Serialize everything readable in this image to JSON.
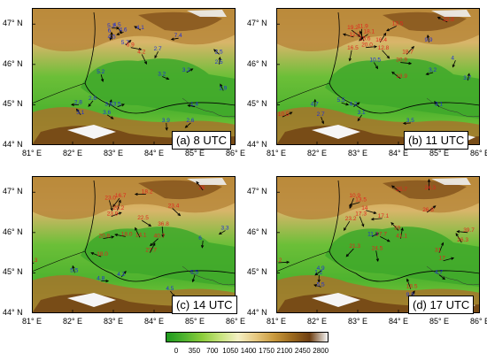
{
  "panels": [
    {
      "label": "(a)  8 UTC",
      "y_ticks": [
        "47° N",
        "46° N",
        "45° N",
        "44° N"
      ],
      "x_ticks": [
        "81° E",
        "82° E",
        "83° E",
        "84° E",
        "85° E",
        "86° E"
      ],
      "stations": [
        {
          "v": "5.2",
          "c": "blue",
          "lon": 82.96,
          "lat": 46.9
        },
        {
          "v": "4.5",
          "c": "blue",
          "lon": 83.1,
          "lat": 46.92
        },
        {
          "v": "6",
          "c": "blue",
          "lon": 82.97,
          "lat": 46.78
        },
        {
          "v": "4.6",
          "c": "blue",
          "lon": 83.25,
          "lat": 46.8
        },
        {
          "v": "4.1",
          "c": "blue",
          "lon": 83.67,
          "lat": 46.85
        },
        {
          "v": "4.5",
          "c": "blue",
          "lon": 82.97,
          "lat": 46.62
        },
        {
          "v": "5.7",
          "c": "blue",
          "lon": 83.3,
          "lat": 46.48
        },
        {
          "v": "6.9",
          "c": "red",
          "lon": 83.43,
          "lat": 46.42
        },
        {
          "v": "4.2",
          "c": "red",
          "lon": 83.7,
          "lat": 46.25
        },
        {
          "v": "2.7",
          "c": "blue",
          "lon": 84.1,
          "lat": 46.32
        },
        {
          "v": "7.4",
          "c": "blue",
          "lon": 84.6,
          "lat": 46.65
        },
        {
          "v": "2.5",
          "c": "blue",
          "lon": 85.6,
          "lat": 46.25
        },
        {
          "v": "2.5",
          "c": "blue",
          "lon": 85.6,
          "lat": 46.0
        },
        {
          "v": "3.2",
          "c": "blue",
          "lon": 84.8,
          "lat": 45.8
        },
        {
          "v": "3.2",
          "c": "blue",
          "lon": 84.2,
          "lat": 45.7
        },
        {
          "v": "5.2",
          "c": "blue",
          "lon": 82.7,
          "lat": 45.75
        },
        {
          "v": "2.6",
          "c": "blue",
          "lon": 82.5,
          "lat": 45.1
        },
        {
          "v": "2.8",
          "c": "blue",
          "lon": 82.15,
          "lat": 45.0
        },
        {
          "v": "3.1",
          "c": "blue",
          "lon": 82.2,
          "lat": 44.75
        },
        {
          "v": "3.6",
          "c": "blue",
          "lon": 82.9,
          "lat": 44.95
        },
        {
          "v": "3.5",
          "c": "blue",
          "lon": 83.1,
          "lat": 44.95
        },
        {
          "v": "3.6",
          "c": "blue",
          "lon": 82.85,
          "lat": 44.75
        },
        {
          "v": "3.9",
          "c": "blue",
          "lon": 84.3,
          "lat": 44.55
        },
        {
          "v": "2.6",
          "c": "blue",
          "lon": 84.9,
          "lat": 44.55
        },
        {
          "v": "1.4",
          "c": "blue",
          "lon": 85.0,
          "lat": 44.95
        },
        {
          "v": "1.9",
          "c": "blue",
          "lon": 85.7,
          "lat": 45.35
        }
      ]
    },
    {
      "label": "(b) 11 UTC",
      "y_ticks": [
        "47° N",
        "46° N",
        "45° N",
        "44° N"
      ],
      "x_ticks": [
        "81° E",
        "82° E",
        "83° E",
        "84° E",
        "85° E",
        "86° E"
      ],
      "stations": [
        {
          "v": "19.2",
          "c": "red",
          "lon": 82.85,
          "lat": 46.85
        },
        {
          "v": "11.9",
          "c": "red",
          "lon": 83.1,
          "lat": 46.88
        },
        {
          "v": "18.1",
          "c": "red",
          "lon": 83.25,
          "lat": 46.75
        },
        {
          "v": "12.3",
          "c": "red",
          "lon": 82.9,
          "lat": 46.68
        },
        {
          "v": "15.6",
          "c": "red",
          "lon": 83.15,
          "lat": 46.58
        },
        {
          "v": "16.4",
          "c": "red",
          "lon": 83.55,
          "lat": 46.55
        },
        {
          "v": "20.0",
          "c": "red",
          "lon": 83.2,
          "lat": 46.42
        },
        {
          "v": "12.8",
          "c": "red",
          "lon": 83.6,
          "lat": 46.35
        },
        {
          "v": "16.5",
          "c": "red",
          "lon": 82.85,
          "lat": 46.35
        },
        {
          "v": "13.5",
          "c": "red",
          "lon": 83.95,
          "lat": 46.95
        },
        {
          "v": "22.8",
          "c": "red",
          "lon": 85.2,
          "lat": 47.05
        },
        {
          "v": "9.9",
          "c": "blue",
          "lon": 84.75,
          "lat": 46.55
        },
        {
          "v": "18.7",
          "c": "red",
          "lon": 84.2,
          "lat": 46.25
        },
        {
          "v": "30.9",
          "c": "red",
          "lon": 84.05,
          "lat": 46.05
        },
        {
          "v": "10.5",
          "c": "blue",
          "lon": 83.4,
          "lat": 46.05
        },
        {
          "v": "4",
          "c": "blue",
          "lon": 85.4,
          "lat": 46.1
        },
        {
          "v": "3.2",
          "c": "blue",
          "lon": 84.85,
          "lat": 45.8
        },
        {
          "v": "18.9",
          "c": "red",
          "lon": 84.05,
          "lat": 45.65
        },
        {
          "v": "4.7",
          "c": "blue",
          "lon": 81.95,
          "lat": 44.95
        },
        {
          "v": "4.2",
          "c": "blue",
          "lon": 82.9,
          "lat": 44.95
        },
        {
          "v": "5.5",
          "c": "blue",
          "lon": 82.6,
          "lat": 45.05
        },
        {
          "v": "2.7",
          "c": "blue",
          "lon": 82.1,
          "lat": 44.7
        },
        {
          "v": "3.1",
          "c": "blue",
          "lon": 83.1,
          "lat": 44.75
        },
        {
          "v": "3.5",
          "c": "blue",
          "lon": 84.3,
          "lat": 44.55
        },
        {
          "v": "3.1",
          "c": "blue",
          "lon": 85.0,
          "lat": 44.95
        },
        {
          "v": "3.7",
          "c": "blue",
          "lon": 85.7,
          "lat": 45.6
        },
        {
          "v": "10.5",
          "c": "red",
          "lon": 81.15,
          "lat": 44.7
        }
      ]
    },
    {
      "label": "(c) 14 UTC",
      "y_ticks": [
        "47° N",
        "46° N",
        "45° N",
        "44° N"
      ],
      "x_ticks": [
        "81° E",
        "82° E",
        "83° E",
        "84° E",
        "85° E",
        "86° E"
      ],
      "stations": [
        {
          "v": "23.0",
          "c": "red",
          "lon": 82.9,
          "lat": 46.8
        },
        {
          "v": "16.7",
          "c": "red",
          "lon": 83.15,
          "lat": 46.85
        },
        {
          "v": "18.2",
          "c": "red",
          "lon": 83.8,
          "lat": 46.95
        },
        {
          "v": "26",
          "c": "red",
          "lon": 85.2,
          "lat": 47.05
        },
        {
          "v": "20.2",
          "c": "red",
          "lon": 83.1,
          "lat": 46.55
        },
        {
          "v": "23.9",
          "c": "red",
          "lon": 82.95,
          "lat": 46.4
        },
        {
          "v": "22.5",
          "c": "red",
          "lon": 83.7,
          "lat": 46.3
        },
        {
          "v": "36.8",
          "c": "red",
          "lon": 84.2,
          "lat": 46.15
        },
        {
          "v": "40.7",
          "c": "red",
          "lon": 84.1,
          "lat": 45.85
        },
        {
          "v": "18.0",
          "c": "red",
          "lon": 83.3,
          "lat": 45.9
        },
        {
          "v": "14.1",
          "c": "red",
          "lon": 83.65,
          "lat": 45.88
        },
        {
          "v": "27.7",
          "c": "red",
          "lon": 83.9,
          "lat": 45.5
        },
        {
          "v": "20.8",
          "c": "red",
          "lon": 82.75,
          "lat": 45.85
        },
        {
          "v": "23.4",
          "c": "red",
          "lon": 84.45,
          "lat": 46.6
        },
        {
          "v": "6",
          "c": "blue",
          "lon": 85.2,
          "lat": 45.8
        },
        {
          "v": "3.3",
          "c": "blue",
          "lon": 85.75,
          "lat": 46.05
        },
        {
          "v": "18.0",
          "c": "red",
          "lon": 82.7,
          "lat": 45.4
        },
        {
          "v": "5.5",
          "c": "blue",
          "lon": 82.05,
          "lat": 45.0
        },
        {
          "v": "4.2",
          "c": "blue",
          "lon": 83.2,
          "lat": 44.9
        },
        {
          "v": "4.8",
          "c": "blue",
          "lon": 82.7,
          "lat": 44.8
        },
        {
          "v": "4.5",
          "c": "blue",
          "lon": 84.4,
          "lat": 44.55
        },
        {
          "v": "5.5",
          "c": "blue",
          "lon": 85.0,
          "lat": 44.95
        },
        {
          "v": "2.3",
          "c": "red",
          "lon": 81.05,
          "lat": 45.25
        }
      ]
    },
    {
      "label": "(d) 17 UTC",
      "y_ticks": [
        "47° N",
        "46° N",
        "45° N",
        "44° N"
      ],
      "x_ticks": [
        "81° E",
        "82° E",
        "83° E",
        "84° E",
        "85° E",
        "86° E"
      ],
      "stations": [
        {
          "v": "10.9",
          "c": "red",
          "lon": 82.9,
          "lat": 46.85
        },
        {
          "v": "13.5",
          "c": "red",
          "lon": 83.05,
          "lat": 46.75
        },
        {
          "v": "25.7",
          "c": "red",
          "lon": 84.05,
          "lat": 47.0
        },
        {
          "v": "24.3",
          "c": "red",
          "lon": 84.75,
          "lat": 47.05
        },
        {
          "v": "26.8",
          "c": "red",
          "lon": 84.7,
          "lat": 46.5
        },
        {
          "v": "14",
          "c": "red",
          "lon": 83.2,
          "lat": 46.55
        },
        {
          "v": "17.3",
          "c": "red",
          "lon": 83.05,
          "lat": 46.4
        },
        {
          "v": "23.2",
          "c": "red",
          "lon": 82.8,
          "lat": 46.28
        },
        {
          "v": "17.1",
          "c": "red",
          "lon": 83.6,
          "lat": 46.35
        },
        {
          "v": "39",
          "c": "red",
          "lon": 84.0,
          "lat": 46.05
        },
        {
          "v": "41.1",
          "c": "red",
          "lon": 84.05,
          "lat": 45.85
        },
        {
          "v": "11.3",
          "c": "blue",
          "lon": 83.35,
          "lat": 45.9
        },
        {
          "v": "17.7",
          "c": "red",
          "lon": 83.55,
          "lat": 45.9
        },
        {
          "v": "24.5",
          "c": "red",
          "lon": 83.45,
          "lat": 45.55
        },
        {
          "v": "21.3",
          "c": "red",
          "lon": 82.9,
          "lat": 45.6
        },
        {
          "v": "39.7",
          "c": "red",
          "lon": 85.7,
          "lat": 46.0
        },
        {
          "v": "26.3",
          "c": "red",
          "lon": 85.55,
          "lat": 45.75
        },
        {
          "v": "31",
          "c": "red",
          "lon": 85.0,
          "lat": 45.5
        },
        {
          "v": "17",
          "c": "red",
          "lon": 85.1,
          "lat": 45.3
        },
        {
          "v": "4.7",
          "c": "blue",
          "lon": 85.0,
          "lat": 44.95
        },
        {
          "v": "1.2",
          "c": "blue",
          "lon": 82.05,
          "lat": 44.95
        },
        {
          "v": "4.9",
          "c": "blue",
          "lon": 82.1,
          "lat": 45.05
        },
        {
          "v": "5.5",
          "c": "blue",
          "lon": 82.1,
          "lat": 44.65
        },
        {
          "v": "18.5",
          "c": "red",
          "lon": 84.3,
          "lat": 44.6
        },
        {
          "v": "9.9",
          "c": "blue",
          "lon": 84.3,
          "lat": 44.4
        },
        {
          "v": "1.2",
          "c": "red",
          "lon": 81.05,
          "lat": 45.25
        }
      ]
    }
  ],
  "colorbar": {
    "ticks": [
      "0",
      "350",
      "700",
      "1050",
      "1400",
      "1750",
      "2100",
      "2450",
      "2800"
    ],
    "colors": [
      "#1e9a1e",
      "#4fb32f",
      "#8ccd3c",
      "#c6e37c",
      "#f4f0c4",
      "#e6c880",
      "#c99a3e",
      "#9c6a1f",
      "#6e3f12",
      "#f5f5f5"
    ]
  },
  "colors": {
    "red_label": "#e0261e",
    "blue_label": "#1f2fd8",
    "arrow": "#000000",
    "boundary": "#000000"
  }
}
